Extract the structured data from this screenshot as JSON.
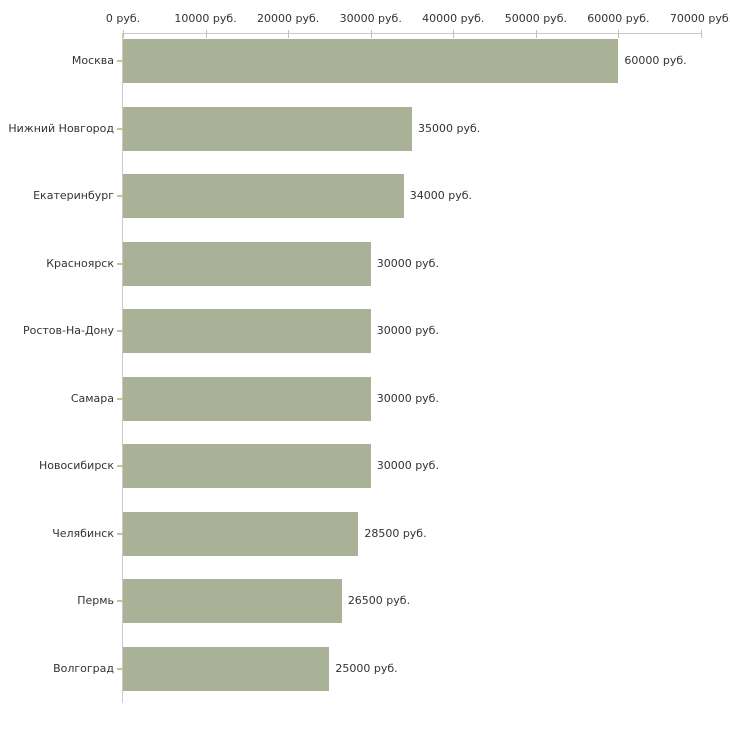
{
  "chart_data": {
    "type": "bar",
    "orientation": "horizontal",
    "title": "",
    "xlabel": "",
    "ylabel": "",
    "unit": "руб.",
    "xlim": [
      0,
      70000
    ],
    "grid": false,
    "legend": false,
    "categories": [
      "Москва",
      "Нижний Новгород",
      "Екатеринбург",
      "Красноярск",
      "Ростов-На-Дону",
      "Самара",
      "Новосибирск",
      "Челябинск",
      "Пермь",
      "Волгоград"
    ],
    "values": [
      60000,
      35000,
      34000,
      30000,
      30000,
      30000,
      30000,
      28500,
      26500,
      25000
    ],
    "value_labels": [
      "60000 руб.",
      "35000 руб.",
      "34000 руб.",
      "30000 руб.",
      "30000 руб.",
      "30000 руб.",
      "30000 руб.",
      "28500 руб.",
      "26500 руб.",
      "25000 руб."
    ],
    "x_ticks": [
      {
        "value": 0,
        "label": "0 руб."
      },
      {
        "value": 10000,
        "label": "10000 руб."
      },
      {
        "value": 20000,
        "label": "20000 руб."
      },
      {
        "value": 30000,
        "label": "30000 руб."
      },
      {
        "value": 40000,
        "label": "40000 руб."
      },
      {
        "value": 50000,
        "label": "50000 руб."
      },
      {
        "value": 60000,
        "label": "60000 руб."
      },
      {
        "value": 70000,
        "label": "70000 руб."
      }
    ],
    "colors": {
      "bar": "#a9b197",
      "tick_mark": "#c9c39a",
      "axis_line": "#c9c9c9",
      "text": "#333333",
      "background": "#ffffff"
    }
  }
}
